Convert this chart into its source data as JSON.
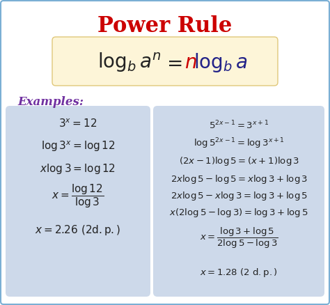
{
  "title": "Power Rule",
  "title_color": "#cc0000",
  "title_fontsize": 22,
  "bg_color": "#ffffff",
  "border_color": "#7bafd4",
  "formula_bg": "#fdf5d8",
  "formula_border": "#e0c87a",
  "examples_label": "Examples:",
  "examples_color": "#7030a0",
  "box_bg": "#cdd9ea",
  "figwidth": 4.74,
  "figheight": 4.38,
  "dpi": 100
}
